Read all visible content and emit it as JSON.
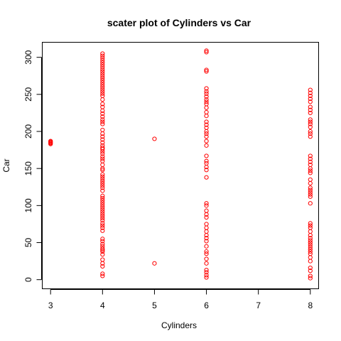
{
  "chart_data": {
    "type": "scatter",
    "title": "scater plot of Cylinders vs Car",
    "xlabel": "Cylinders",
    "ylabel": "Car",
    "xlim": [
      2.84,
      8.16
    ],
    "ylim": [
      -12.3,
      320.3
    ],
    "xticks": [
      3,
      4,
      5,
      6,
      7,
      8
    ],
    "yticks": [
      0,
      50,
      100,
      150,
      200,
      250,
      300
    ],
    "grid": false,
    "point_color": "#ff0000",
    "series": [
      {
        "points": [
          [
            3,
            183
          ],
          [
            3,
            184
          ],
          [
            3,
            185
          ],
          [
            3,
            186
          ],
          [
            3,
            187
          ],
          [
            4,
            5
          ],
          [
            4,
            8
          ],
          [
            4,
            18
          ],
          [
            4,
            22
          ],
          [
            4,
            27
          ],
          [
            4,
            34
          ],
          [
            4,
            38
          ],
          [
            4,
            40
          ],
          [
            4,
            42
          ],
          [
            4,
            45
          ],
          [
            4,
            48
          ],
          [
            4,
            52
          ],
          [
            4,
            55
          ],
          [
            4,
            66
          ],
          [
            4,
            70
          ],
          [
            4,
            73
          ],
          [
            4,
            76
          ],
          [
            4,
            80
          ],
          [
            4,
            83
          ],
          [
            4,
            86
          ],
          [
            4,
            89
          ],
          [
            4,
            92
          ],
          [
            4,
            95
          ],
          [
            4,
            98
          ],
          [
            4,
            101
          ],
          [
            4,
            104
          ],
          [
            4,
            107
          ],
          [
            4,
            110
          ],
          [
            4,
            113
          ],
          [
            4,
            120
          ],
          [
            4,
            124
          ],
          [
            4,
            127
          ],
          [
            4,
            130
          ],
          [
            4,
            133
          ],
          [
            4,
            136
          ],
          [
            4,
            139
          ],
          [
            4,
            142
          ],
          [
            4,
            148
          ],
          [
            4,
            150
          ],
          [
            4,
            155
          ],
          [
            4,
            160
          ],
          [
            4,
            163
          ],
          [
            4,
            166
          ],
          [
            4,
            170
          ],
          [
            4,
            173
          ],
          [
            4,
            176
          ],
          [
            4,
            178
          ],
          [
            4,
            181
          ],
          [
            4,
            185
          ],
          [
            4,
            189
          ],
          [
            4,
            193
          ],
          [
            4,
            197
          ],
          [
            4,
            202
          ],
          [
            4,
            210
          ],
          [
            4,
            213
          ],
          [
            4,
            216
          ],
          [
            4,
            220
          ],
          [
            4,
            224
          ],
          [
            4,
            228
          ],
          [
            4,
            233
          ],
          [
            4,
            237
          ],
          [
            4,
            243
          ],
          [
            4,
            248
          ],
          [
            4,
            251
          ],
          [
            4,
            254
          ],
          [
            4,
            257
          ],
          [
            4,
            260
          ],
          [
            4,
            263
          ],
          [
            4,
            266
          ],
          [
            4,
            269
          ],
          [
            4,
            272
          ],
          [
            4,
            275
          ],
          [
            4,
            278
          ],
          [
            4,
            281
          ],
          [
            4,
            284
          ],
          [
            4,
            287
          ],
          [
            4,
            290
          ],
          [
            4,
            293
          ],
          [
            4,
            296
          ],
          [
            4,
            299
          ],
          [
            4,
            302
          ],
          [
            4,
            305
          ],
          [
            5,
            22
          ],
          [
            5,
            190
          ],
          [
            6,
            3
          ],
          [
            6,
            6
          ],
          [
            6,
            10
          ],
          [
            6,
            13
          ],
          [
            6,
            22
          ],
          [
            6,
            28
          ],
          [
            6,
            35
          ],
          [
            6,
            38
          ],
          [
            6,
            45
          ],
          [
            6,
            52
          ],
          [
            6,
            56
          ],
          [
            6,
            60
          ],
          [
            6,
            65
          ],
          [
            6,
            70
          ],
          [
            6,
            75
          ],
          [
            6,
            84
          ],
          [
            6,
            88
          ],
          [
            6,
            93
          ],
          [
            6,
            100
          ],
          [
            6,
            103
          ],
          [
            6,
            138
          ],
          [
            6,
            148
          ],
          [
            6,
            152
          ],
          [
            6,
            157
          ],
          [
            6,
            160
          ],
          [
            6,
            167
          ],
          [
            6,
            181
          ],
          [
            6,
            187
          ],
          [
            6,
            193
          ],
          [
            6,
            197
          ],
          [
            6,
            200
          ],
          [
            6,
            205
          ],
          [
            6,
            209
          ],
          [
            6,
            213
          ],
          [
            6,
            221
          ],
          [
            6,
            226
          ],
          [
            6,
            232
          ],
          [
            6,
            237
          ],
          [
            6,
            240
          ],
          [
            6,
            243
          ],
          [
            6,
            247
          ],
          [
            6,
            251
          ],
          [
            6,
            254
          ],
          [
            6,
            258
          ],
          [
            6,
            281
          ],
          [
            6,
            283
          ],
          [
            6,
            307
          ],
          [
            6,
            309
          ],
          [
            8,
            2
          ],
          [
            8,
            5
          ],
          [
            8,
            12
          ],
          [
            8,
            16
          ],
          [
            8,
            25
          ],
          [
            8,
            30
          ],
          [
            8,
            35
          ],
          [
            8,
            38
          ],
          [
            8,
            41
          ],
          [
            8,
            44
          ],
          [
            8,
            47
          ],
          [
            8,
            50
          ],
          [
            8,
            53
          ],
          [
            8,
            56
          ],
          [
            8,
            60
          ],
          [
            8,
            65
          ],
          [
            8,
            70
          ],
          [
            8,
            73
          ],
          [
            8,
            76
          ],
          [
            8,
            103
          ],
          [
            8,
            112
          ],
          [
            8,
            115
          ],
          [
            8,
            118
          ],
          [
            8,
            121
          ],
          [
            8,
            124
          ],
          [
            8,
            130
          ],
          [
            8,
            135
          ],
          [
            8,
            144
          ],
          [
            8,
            147
          ],
          [
            8,
            150
          ],
          [
            8,
            155
          ],
          [
            8,
            159
          ],
          [
            8,
            163
          ],
          [
            8,
            167
          ],
          [
            8,
            193
          ],
          [
            8,
            197
          ],
          [
            8,
            200
          ],
          [
            8,
            206
          ],
          [
            8,
            210
          ],
          [
            8,
            213
          ],
          [
            8,
            216
          ],
          [
            8,
            225
          ],
          [
            8,
            229
          ],
          [
            8,
            233
          ],
          [
            8,
            240
          ],
          [
            8,
            244
          ],
          [
            8,
            248
          ],
          [
            8,
            252
          ],
          [
            8,
            256
          ]
        ]
      }
    ]
  }
}
